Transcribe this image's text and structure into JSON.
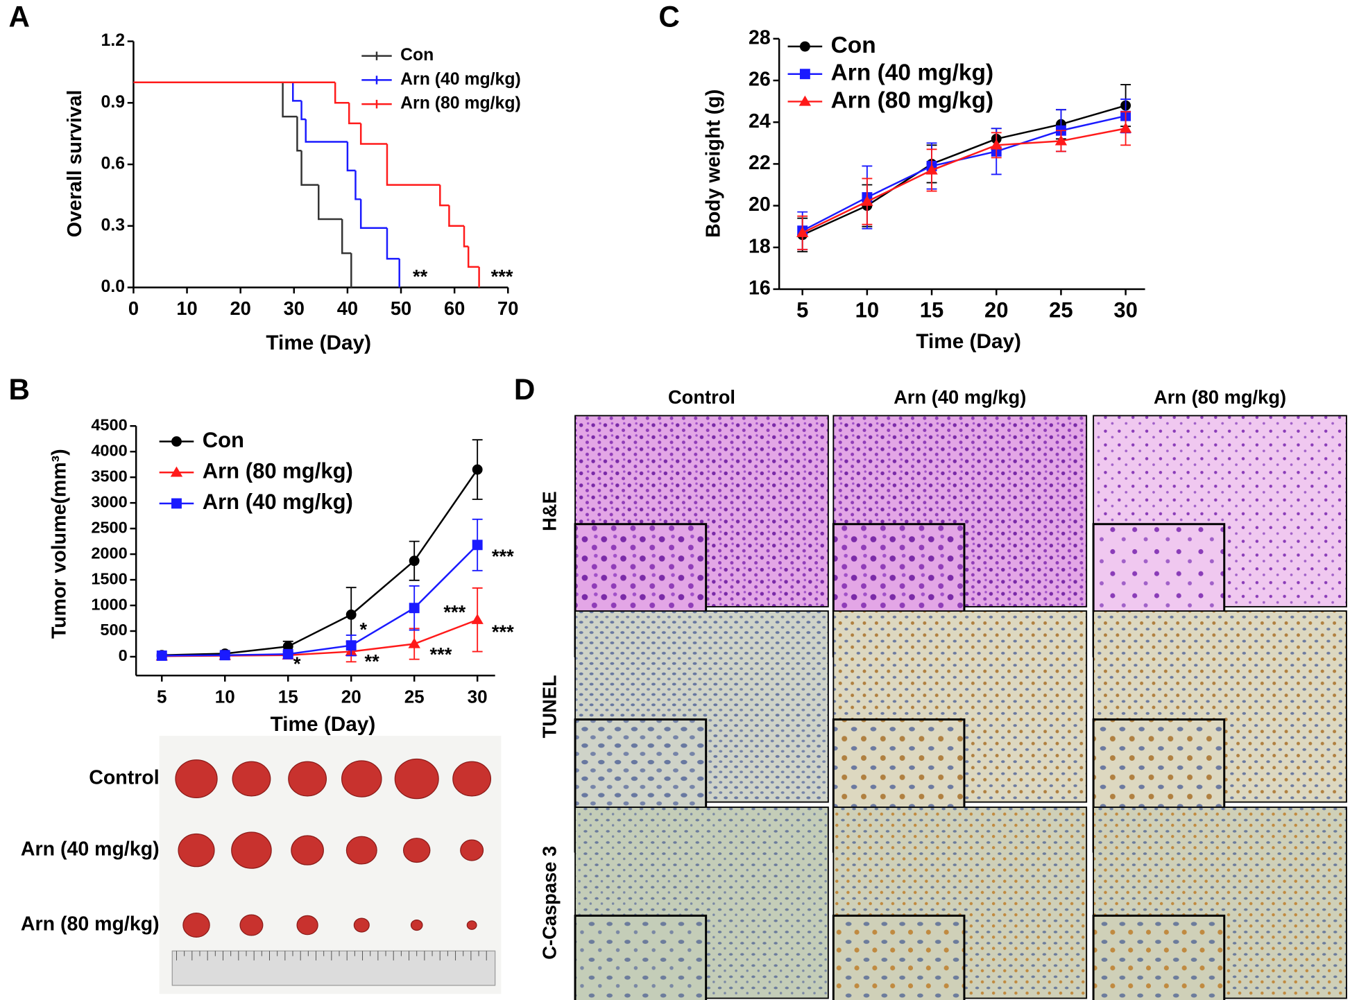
{
  "panels": [
    "A",
    "B",
    "C",
    "D"
  ],
  "chart_data": [
    {
      "type": "step",
      "y_label": "Overall survival",
      "x_label": "Time (Day)",
      "xlim": [
        0,
        70
      ],
      "xticks": [
        0,
        10,
        20,
        30,
        40,
        50,
        60,
        70
      ],
      "ylim": [
        0,
        1.2
      ],
      "yticks": [
        {
          "value": 0,
          "label": "0.0"
        },
        0.3,
        0.6,
        0.9,
        1.2
      ],
      "legend": "top-right",
      "annotations": [
        "**",
        "***"
      ],
      "series": [
        {
          "name": "Con",
          "color": "#333333",
          "x": [
            0,
            27.9,
            30.6,
            31.4,
            34.6,
            39,
            40.7
          ],
          "values": [
            1,
            0.833,
            0.667,
            0.5,
            0.333,
            0.167,
            0
          ]
        },
        {
          "name": "Arn (40 mg/kg)",
          "color": "#1a1aff",
          "x": [
            0,
            29.8,
            31.4,
            32.2,
            40,
            41.5,
            42.5,
            47.4,
            49.7
          ],
          "values": [
            1,
            0.91,
            0.82,
            0.71,
            0.57,
            0.43,
            0.29,
            0.14,
            0
          ]
        },
        {
          "name": "Arn (80 mg/kg)",
          "color": "#ff1a1a",
          "x": [
            0,
            37.7,
            40.3,
            42.5,
            47.4,
            57.3,
            59,
            61.8,
            62.6,
            64.6
          ],
          "values": [
            1,
            0.9,
            0.8,
            0.7,
            0.5,
            0.4,
            0.3,
            0.2,
            0.1,
            0
          ]
        }
      ]
    },
    {
      "type": "line",
      "y_label": "Tumor volume(mm³)",
      "x_label": "Time (Day)",
      "x": [
        5,
        10,
        15,
        20,
        25,
        30
      ],
      "xlim": [
        2.96,
        31.4
      ],
      "xticks": [
        5,
        10,
        15,
        20,
        25,
        30
      ],
      "ylim": [
        -200,
        4500
      ],
      "yticks": [
        0,
        500,
        1000,
        1500,
        2000,
        2500,
        3000,
        3500,
        4000,
        4500
      ],
      "legend": "top-left",
      "annotations": [
        "*",
        "*",
        "**",
        "***",
        "***",
        "***",
        "***"
      ],
      "series": [
        {
          "name": "Con",
          "color": "#000000",
          "marker": "circle",
          "values": [
            30,
            60,
            200,
            820,
            1870,
            3650
          ],
          "errors": [
            20,
            30,
            100,
            530,
            380,
            580
          ]
        },
        {
          "name": "Arn (80 mg/kg)",
          "color": "#ff1a1a",
          "marker": "triangle",
          "values": [
            10,
            20,
            30,
            100,
            250,
            720
          ],
          "errors": [
            10,
            10,
            20,
            200,
            300,
            620
          ]
        },
        {
          "name": "Arn (40 mg/kg)",
          "color": "#1a1aff",
          "marker": "square",
          "values": [
            20,
            30,
            50,
            220,
            950,
            2180
          ],
          "errors": [
            10,
            20,
            30,
            200,
            430,
            500
          ]
        }
      ]
    },
    {
      "type": "line",
      "y_label": "Body weight (g)",
      "x_label": "Time (Day)",
      "x": [
        5,
        10,
        15,
        20,
        25,
        30
      ],
      "xlim": [
        3.2,
        31.5
      ],
      "xticks": [
        5,
        10,
        15,
        20,
        25,
        30
      ],
      "ylim": [
        16,
        28
      ],
      "yticks": [
        16,
        18,
        20,
        22,
        24,
        26,
        28
      ],
      "legend": "top-left",
      "annotations": [],
      "series": [
        {
          "name": "Con",
          "color": "#000000",
          "marker": "circle",
          "values": [
            18.6,
            20.0,
            22.0,
            23.2,
            23.9,
            24.8
          ],
          "errors": [
            0.8,
            1.0,
            0.9,
            0.5,
            0.7,
            1.0
          ]
        },
        {
          "name": "Arn (40 mg/kg)",
          "color": "#1a1aff",
          "marker": "square",
          "values": [
            18.8,
            20.4,
            21.9,
            22.6,
            23.6,
            24.3
          ],
          "errors": [
            0.9,
            1.5,
            1.1,
            1.1,
            1.0,
            0.8
          ]
        },
        {
          "name": "Arn (80 mg/kg)",
          "color": "#ff1a1a",
          "marker": "triangle",
          "values": [
            18.7,
            20.2,
            21.7,
            22.9,
            23.1,
            23.7
          ],
          "errors": [
            0.8,
            1.1,
            1.0,
            0.6,
            0.5,
            0.8
          ]
        }
      ]
    }
  ],
  "tumor_photo": {
    "rows": [
      "Control",
      "Arn (40 mg/kg)",
      "Arn (80 mg/kg)"
    ]
  },
  "histology": {
    "columns": [
      "Control",
      "Arn (40 mg/kg)",
      "Arn (80 mg/kg)"
    ],
    "rows": [
      "H&E",
      "TUNEL",
      "C-Caspase 3"
    ]
  }
}
